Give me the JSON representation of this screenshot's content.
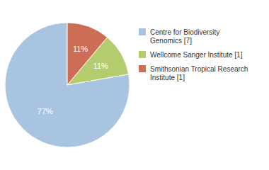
{
  "chart_data": {
    "type": "pie",
    "categories": [
      "Centre for Biodiversity\nGenomics [7]",
      "Wellcome Sanger Institute [1]",
      "Smithsonian Tropical Research\nInstitute [1]"
    ],
    "values": [
      77,
      11,
      11
    ],
    "value_labels": [
      "77%",
      "11%",
      "11%"
    ],
    "colors": [
      "#a8c4e0",
      "#b5cc6e",
      "#cc6e55"
    ],
    "data_labels": true,
    "legend": "right"
  }
}
